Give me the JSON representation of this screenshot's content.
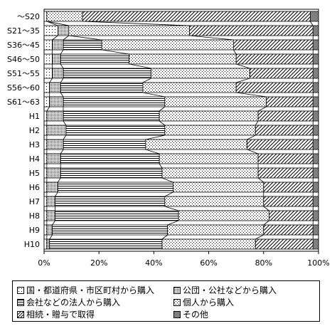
{
  "chart_data": {
    "type": "bar",
    "orientation": "horizontal",
    "stacked": true,
    "percent": true,
    "categories": [
      "～S20",
      "S21～35",
      "S36～45",
      "S46～50",
      "S51～55",
      "S56～60",
      "S61～63",
      "H1",
      "H2",
      "H3",
      "H4",
      "H5",
      "H6",
      "H7",
      "H8",
      "H9",
      "H10"
    ],
    "series": [
      {
        "name": "国・都道府県・市区町村から購入",
        "pattern": "dots-sparse",
        "values": [
          1,
          5,
          3,
          3,
          3,
          2,
          2,
          1,
          1,
          1,
          1,
          1,
          1,
          1,
          1,
          1,
          1
        ]
      },
      {
        "name": "公団・公社などから購入",
        "pattern": "dots-dense",
        "values": [
          0,
          4,
          4,
          3,
          4,
          4,
          5,
          6,
          7,
          6,
          5,
          5,
          4,
          3,
          3,
          2,
          1
        ]
      },
      {
        "name": "会社などの法人から購入",
        "pattern": "hlines",
        "values": [
          0,
          0,
          14,
          25,
          32,
          30,
          37,
          35,
          36,
          30,
          36,
          37,
          42,
          40,
          45,
          42,
          41
        ]
      },
      {
        "name": "個人から購入",
        "pattern": "dots",
        "values": [
          13,
          44,
          48,
          39,
          36,
          34,
          37,
          36,
          33,
          37,
          36,
          35,
          33,
          36,
          33,
          35,
          34
        ]
      },
      {
        "name": "相続・贈与で取得",
        "pattern": "diag",
        "values": [
          83,
          45,
          29,
          28,
          23,
          28,
          17,
          20,
          21,
          24,
          20,
          20,
          18,
          18,
          16,
          18,
          21
        ]
      },
      {
        "name": "その他",
        "pattern": "checker",
        "values": [
          3,
          2,
          2,
          2,
          2,
          2,
          2,
          2,
          2,
          2,
          2,
          2,
          2,
          2,
          2,
          2,
          2
        ]
      }
    ],
    "xlim": [
      0,
      100
    ],
    "x_ticks": [
      "0%",
      "20%",
      "40%",
      "60%",
      "80%",
      "100%"
    ],
    "legend_placement": "bottom",
    "grid": false
  }
}
